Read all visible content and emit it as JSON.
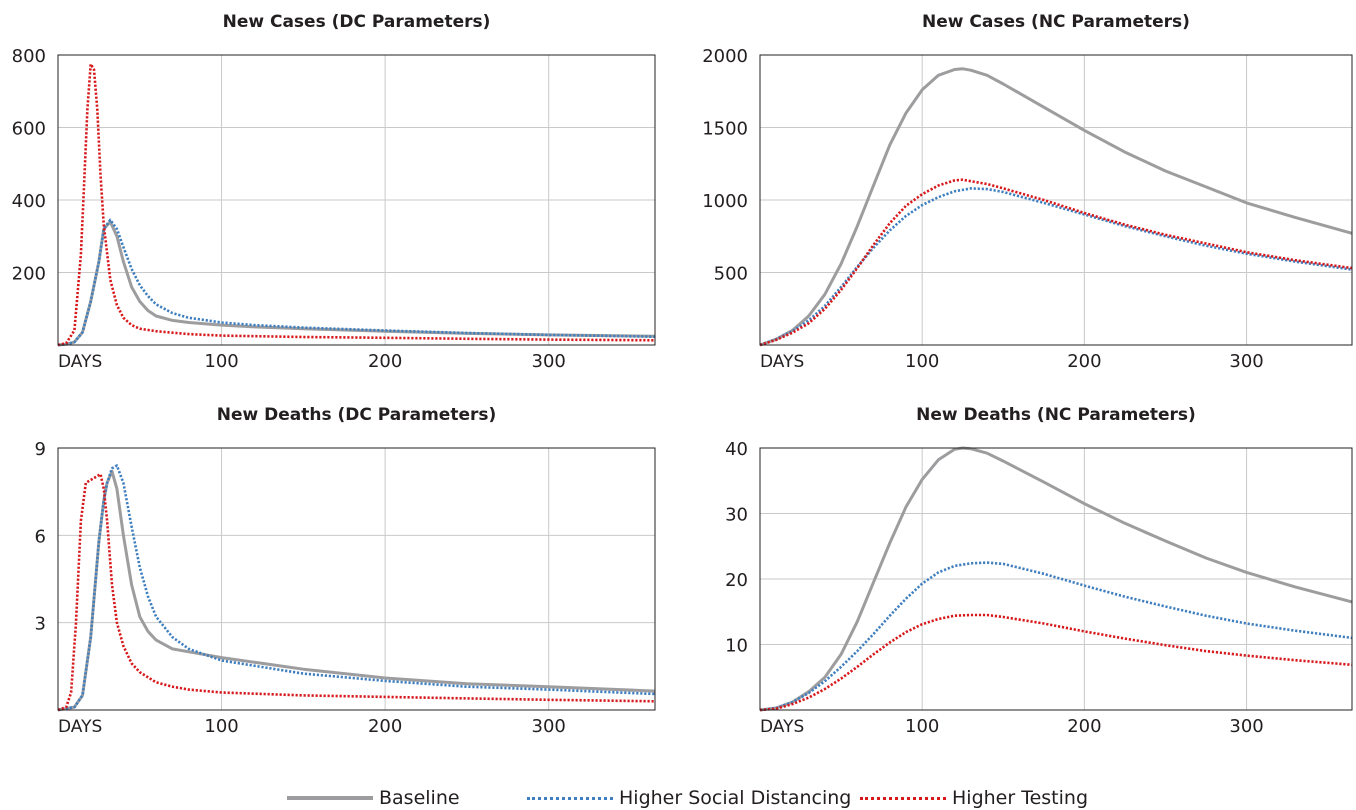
{
  "chart_data": [
    {
      "type": "line",
      "title": "New Cases (DC Parameters)",
      "xlabel": "DAYS",
      "x_ticks": [
        100,
        200,
        300
      ],
      "y_ticks": [
        200,
        400,
        600,
        800
      ],
      "xlim": [
        0,
        365
      ],
      "ylim": [
        0,
        800
      ],
      "grid": true,
      "series": [
        {
          "name": "Baseline",
          "x": [
            0,
            5,
            10,
            15,
            20,
            25,
            28,
            32,
            36,
            40,
            45,
            50,
            55,
            60,
            70,
            80,
            100,
            120,
            150,
            200,
            250,
            300,
            365
          ],
          "values": [
            0,
            2,
            8,
            35,
            120,
            230,
            320,
            340,
            300,
            230,
            160,
            120,
            95,
            80,
            68,
            62,
            55,
            50,
            45,
            38,
            32,
            28,
            24
          ]
        },
        {
          "name": "Higher Social Distancing",
          "x": [
            0,
            5,
            10,
            15,
            20,
            25,
            28,
            32,
            36,
            40,
            45,
            50,
            55,
            60,
            70,
            80,
            100,
            120,
            150,
            200,
            250,
            300,
            365
          ],
          "values": [
            0,
            2,
            8,
            35,
            120,
            230,
            320,
            345,
            320,
            270,
            210,
            165,
            135,
            112,
            88,
            75,
            62,
            55,
            48,
            40,
            33,
            28,
            23
          ]
        },
        {
          "name": "Higher Testing",
          "x": [
            0,
            5,
            10,
            14,
            16,
            18,
            20,
            22,
            24,
            26,
            28,
            32,
            36,
            40,
            45,
            50,
            60,
            70,
            80,
            100,
            150,
            200,
            250,
            300,
            365
          ],
          "values": [
            0,
            5,
            40,
            250,
            450,
            650,
            775,
            760,
            650,
            470,
            330,
            180,
            110,
            75,
            55,
            45,
            38,
            34,
            30,
            26,
            22,
            20,
            17,
            15,
            13
          ]
        }
      ]
    },
    {
      "type": "line",
      "title": "New Cases (NC Parameters)",
      "xlabel": "DAYS",
      "x_ticks": [
        100,
        200,
        300
      ],
      "y_ticks": [
        500,
        1000,
        1500,
        2000
      ],
      "xlim": [
        0,
        365
      ],
      "ylim": [
        0,
        2000
      ],
      "grid": true,
      "series": [
        {
          "name": "Baseline",
          "x": [
            0,
            10,
            20,
            30,
            40,
            50,
            60,
            70,
            80,
            90,
            100,
            110,
            120,
            125,
            130,
            140,
            150,
            175,
            200,
            225,
            250,
            275,
            300,
            330,
            365
          ],
          "values": [
            0,
            40,
            100,
            200,
            350,
            560,
            820,
            1100,
            1380,
            1600,
            1760,
            1860,
            1900,
            1905,
            1895,
            1860,
            1800,
            1640,
            1480,
            1330,
            1200,
            1090,
            980,
            880,
            770
          ]
        },
        {
          "name": "Higher Social Distancing",
          "x": [
            0,
            10,
            20,
            30,
            40,
            50,
            60,
            70,
            80,
            90,
            100,
            110,
            120,
            130,
            140,
            150,
            175,
            200,
            225,
            250,
            275,
            300,
            330,
            365
          ],
          "values": [
            0,
            40,
            95,
            170,
            270,
            400,
            540,
            670,
            790,
            890,
            965,
            1020,
            1060,
            1080,
            1075,
            1055,
            980,
            900,
            820,
            750,
            685,
            630,
            575,
            520
          ]
        },
        {
          "name": "Higher Testing",
          "x": [
            0,
            10,
            20,
            30,
            40,
            50,
            60,
            70,
            80,
            90,
            100,
            110,
            120,
            125,
            130,
            140,
            150,
            175,
            200,
            225,
            250,
            275,
            300,
            330,
            365
          ],
          "values": [
            0,
            35,
            85,
            150,
            250,
            380,
            530,
            690,
            840,
            960,
            1040,
            1100,
            1135,
            1140,
            1130,
            1110,
            1080,
            1000,
            910,
            830,
            760,
            700,
            640,
            585,
            530
          ]
        }
      ]
    },
    {
      "type": "line",
      "title": "New Deaths (DC Parameters)",
      "xlabel": "DAYS",
      "x_ticks": [
        100,
        200,
        300
      ],
      "y_ticks": [
        3,
        6,
        9
      ],
      "xlim": [
        0,
        365
      ],
      "ylim": [
        0,
        9
      ],
      "grid": true,
      "series": [
        {
          "name": "Baseline",
          "x": [
            0,
            10,
            15,
            20,
            25,
            28,
            30,
            33,
            36,
            40,
            45,
            50,
            55,
            60,
            70,
            80,
            90,
            100,
            150,
            200,
            250,
            300,
            365
          ],
          "values": [
            0,
            0.1,
            0.5,
            2.5,
            5.8,
            7.2,
            7.8,
            8.2,
            7.6,
            6.0,
            4.3,
            3.2,
            2.7,
            2.4,
            2.1,
            2.0,
            1.9,
            1.8,
            1.4,
            1.1,
            0.9,
            0.8,
            0.65
          ]
        },
        {
          "name": "Higher Social Distancing",
          "x": [
            0,
            10,
            15,
            20,
            25,
            28,
            30,
            33,
            36,
            40,
            45,
            50,
            55,
            60,
            70,
            80,
            90,
            100,
            150,
            200,
            250,
            300,
            365
          ],
          "values": [
            0,
            0.1,
            0.5,
            2.5,
            5.8,
            7.2,
            7.8,
            8.3,
            8.4,
            7.8,
            6.3,
            4.9,
            3.9,
            3.2,
            2.5,
            2.1,
            1.9,
            1.7,
            1.25,
            1.0,
            0.8,
            0.7,
            0.55
          ]
        },
        {
          "name": "Higher Testing",
          "x": [
            0,
            5,
            8,
            11,
            14,
            17,
            20,
            23,
            26,
            28,
            30,
            33,
            36,
            40,
            45,
            50,
            60,
            70,
            80,
            100,
            150,
            200,
            250,
            300,
            365
          ],
          "values": [
            0,
            0.1,
            0.6,
            3.0,
            6.5,
            7.8,
            7.9,
            8.0,
            8.1,
            7.6,
            6.5,
            4.3,
            3.0,
            2.2,
            1.6,
            1.3,
            0.95,
            0.8,
            0.7,
            0.6,
            0.5,
            0.45,
            0.4,
            0.35,
            0.3
          ]
        }
      ]
    },
    {
      "type": "line",
      "title": "New Deaths (NC Parameters)",
      "xlabel": "DAYS",
      "x_ticks": [
        100,
        200,
        300
      ],
      "y_ticks": [
        10,
        20,
        30,
        40
      ],
      "xlim": [
        0,
        365
      ],
      "ylim": [
        0,
        40
      ],
      "grid": true,
      "series": [
        {
          "name": "Baseline",
          "x": [
            0,
            10,
            20,
            30,
            40,
            50,
            60,
            70,
            80,
            90,
            100,
            110,
            120,
            125,
            130,
            140,
            150,
            175,
            200,
            225,
            250,
            275,
            300,
            330,
            365
          ],
          "values": [
            0,
            0.3,
            1.2,
            2.8,
            5.0,
            8.5,
            13.5,
            19.5,
            25.5,
            31.0,
            35.2,
            38.2,
            39.8,
            40.0,
            39.9,
            39.2,
            38.0,
            34.8,
            31.5,
            28.5,
            25.8,
            23.2,
            21.0,
            18.8,
            16.5
          ]
        },
        {
          "name": "Higher Social Distancing",
          "x": [
            0,
            10,
            20,
            30,
            40,
            50,
            60,
            70,
            80,
            90,
            100,
            110,
            120,
            130,
            140,
            150,
            175,
            200,
            225,
            250,
            275,
            300,
            330,
            365
          ],
          "values": [
            0,
            0.3,
            1.2,
            2.6,
            4.4,
            6.6,
            9.0,
            11.6,
            14.4,
            17.0,
            19.3,
            21.0,
            22.0,
            22.4,
            22.5,
            22.3,
            20.8,
            19.0,
            17.3,
            15.8,
            14.4,
            13.2,
            12.1,
            11.0
          ]
        },
        {
          "name": "Higher Testing",
          "x": [
            0,
            10,
            20,
            30,
            40,
            50,
            60,
            70,
            80,
            90,
            100,
            110,
            120,
            130,
            140,
            150,
            175,
            200,
            225,
            250,
            275,
            300,
            330,
            365
          ],
          "values": [
            0,
            0.2,
            0.9,
            1.9,
            3.2,
            4.8,
            6.6,
            8.5,
            10.3,
            11.9,
            13.1,
            13.9,
            14.4,
            14.5,
            14.5,
            14.2,
            13.2,
            12.0,
            10.9,
            9.9,
            9.0,
            8.3,
            7.6,
            6.9
          ]
        }
      ]
    }
  ],
  "legend": {
    "items": [
      {
        "label": "Baseline",
        "color": "#9d9d9f",
        "style": "solid"
      },
      {
        "label": "Higher Social Distancing",
        "color": "#3f7fbf",
        "style": "dotted"
      },
      {
        "label": "Higher Testing",
        "color": "#d7191c",
        "style": "dotted"
      }
    ]
  }
}
